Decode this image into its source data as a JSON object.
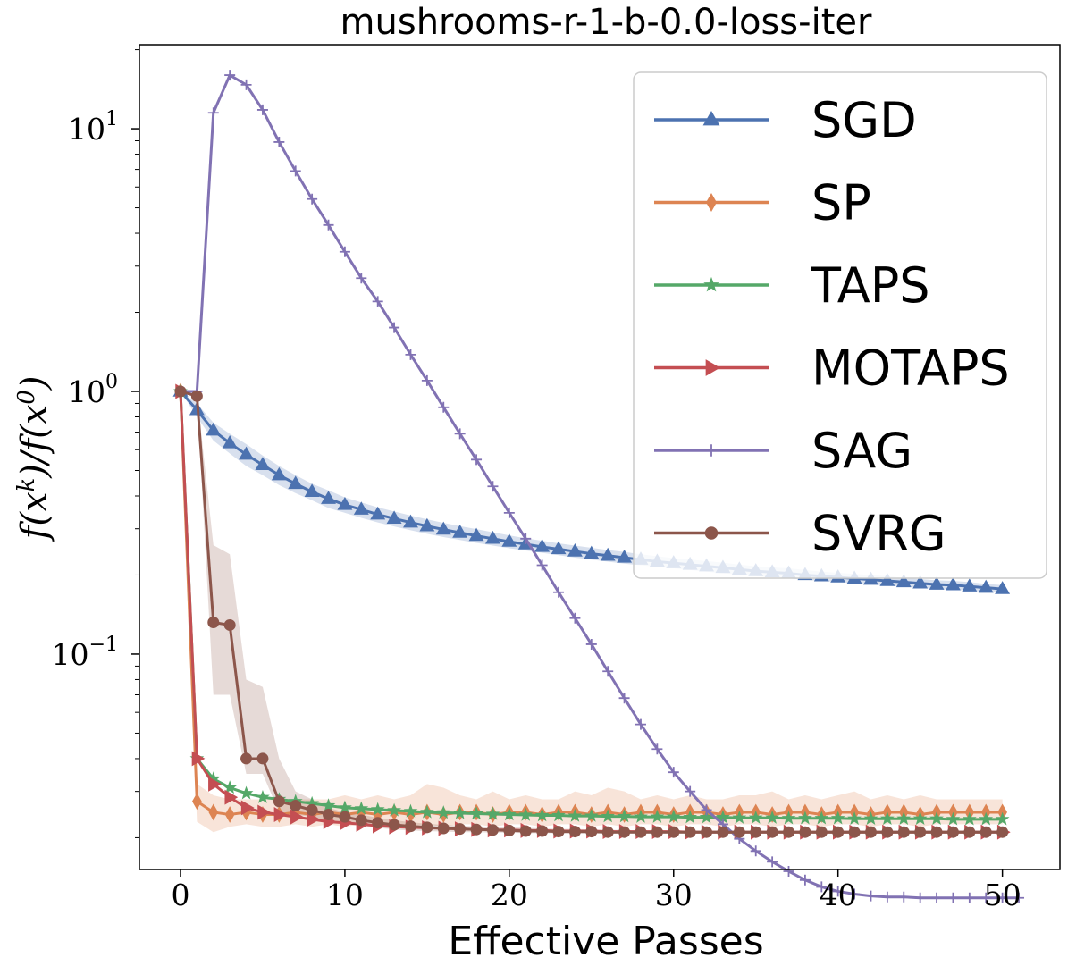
{
  "chart_data": {
    "type": "line",
    "title": "mushrooms-r-1-b-0.0-loss-iter",
    "xlabel": "Effective Passes",
    "ylabel": "f(x^k)/f(x^0)",
    "yscale": "log",
    "xlim": [
      -2.5,
      53.5
    ],
    "ylim_log10": [
      -1.82,
      1.32
    ],
    "xticks": [
      0,
      10,
      20,
      30,
      40,
      50
    ],
    "xtick_labels": [
      "0",
      "10",
      "20",
      "30",
      "40",
      "50"
    ],
    "yticks": [
      0.1,
      1,
      10
    ],
    "ytick_labels": [
      {
        "base": "10",
        "exp": "−1"
      },
      {
        "base": "10",
        "exp": "0"
      },
      {
        "base": "10",
        "exp": "1"
      }
    ],
    "legend_position": "top-right",
    "series": [
      {
        "name": "SGD",
        "color": "#4c72b0",
        "marker": "triangle",
        "x": [
          0,
          1,
          2,
          3,
          4,
          5,
          6,
          7,
          8,
          9,
          10,
          11,
          12,
          13,
          14,
          15,
          16,
          17,
          18,
          19,
          20,
          21,
          22,
          23,
          24,
          25,
          26,
          27,
          28,
          29,
          30,
          31,
          32,
          33,
          34,
          35,
          36,
          37,
          38,
          39,
          40,
          41,
          42,
          43,
          44,
          45,
          46,
          47,
          48,
          49,
          50
        ],
        "y": [
          1.0,
          0.85,
          0.71,
          0.635,
          0.575,
          0.525,
          0.48,
          0.445,
          0.415,
          0.39,
          0.37,
          0.355,
          0.34,
          0.328,
          0.317,
          0.307,
          0.298,
          0.29,
          0.282,
          0.275,
          0.268,
          0.262,
          0.256,
          0.251,
          0.246,
          0.241,
          0.237,
          0.233,
          0.229,
          0.225,
          0.222,
          0.219,
          0.216,
          0.213,
          0.21,
          0.207,
          0.205,
          0.203,
          0.2,
          0.198,
          0.196,
          0.194,
          0.192,
          0.19,
          0.188,
          0.186,
          0.184,
          0.183,
          0.181,
          0.179,
          0.177
        ],
        "band_lo": [
          1.0,
          0.8,
          0.65,
          0.58,
          0.52,
          0.48,
          0.44,
          0.41,
          0.385,
          0.36,
          0.345,
          0.33,
          0.317,
          0.306,
          0.296,
          0.287,
          0.279,
          0.272,
          0.265,
          0.259,
          0.253,
          0.248,
          0.243,
          0.238,
          0.233,
          0.229,
          0.225,
          0.221,
          0.218,
          0.215,
          0.212,
          0.209,
          0.206,
          0.203,
          0.201,
          0.198,
          0.196,
          0.194,
          0.192,
          0.19,
          0.188,
          0.186,
          0.184,
          0.182,
          0.181,
          0.179,
          0.177,
          0.176,
          0.174,
          0.173,
          0.171
        ],
        "band_hi": [
          1.0,
          0.9,
          0.76,
          0.69,
          0.63,
          0.57,
          0.52,
          0.48,
          0.445,
          0.42,
          0.395,
          0.378,
          0.362,
          0.349,
          0.337,
          0.326,
          0.316,
          0.307,
          0.299,
          0.291,
          0.283,
          0.276,
          0.27,
          0.264,
          0.259,
          0.254,
          0.249,
          0.245,
          0.24,
          0.236,
          0.232,
          0.229,
          0.226,
          0.223,
          0.219,
          0.216,
          0.214,
          0.212,
          0.209,
          0.206,
          0.204,
          0.202,
          0.2,
          0.198,
          0.195,
          0.193,
          0.191,
          0.19,
          0.188,
          0.185,
          0.183
        ]
      },
      {
        "name": "SP",
        "color": "#dd8452",
        "marker": "diamond",
        "x": [
          0,
          1,
          2,
          3,
          4,
          5,
          6,
          7,
          8,
          9,
          10,
          11,
          12,
          13,
          14,
          15,
          16,
          17,
          18,
          19,
          20,
          21,
          22,
          23,
          24,
          25,
          26,
          27,
          28,
          29,
          30,
          31,
          32,
          33,
          34,
          35,
          36,
          37,
          38,
          39,
          40,
          41,
          42,
          43,
          44,
          45,
          46,
          47,
          48,
          49,
          50
        ],
        "y": [
          1.0,
          0.0275,
          0.025,
          0.0245,
          0.025,
          0.0245,
          0.0245,
          0.025,
          0.0245,
          0.025,
          0.0245,
          0.025,
          0.0245,
          0.025,
          0.0245,
          0.025,
          0.0245,
          0.025,
          0.025,
          0.0245,
          0.025,
          0.025,
          0.0245,
          0.025,
          0.025,
          0.0245,
          0.025,
          0.0245,
          0.025,
          0.025,
          0.0245,
          0.025,
          0.025,
          0.0245,
          0.025,
          0.025,
          0.0245,
          0.025,
          0.025,
          0.0245,
          0.025,
          0.025,
          0.0245,
          0.025,
          0.025,
          0.0245,
          0.025,
          0.025,
          0.025,
          0.025,
          0.025
        ],
        "band_lo": [
          1.0,
          0.023,
          0.021,
          0.022,
          0.0225,
          0.022,
          0.022,
          0.0225,
          0.022,
          0.0225,
          0.022,
          0.0225,
          0.022,
          0.0225,
          0.022,
          0.0225,
          0.022,
          0.0225,
          0.0225,
          0.022,
          0.0225,
          0.0225,
          0.022,
          0.0225,
          0.0225,
          0.022,
          0.0225,
          0.022,
          0.0225,
          0.0225,
          0.022,
          0.0225,
          0.0225,
          0.022,
          0.0225,
          0.0225,
          0.022,
          0.0225,
          0.0225,
          0.022,
          0.0225,
          0.0225,
          0.022,
          0.0225,
          0.0225,
          0.022,
          0.0225,
          0.0225,
          0.0225,
          0.0225,
          0.0225
        ],
        "band_hi": [
          1.0,
          0.032,
          0.029,
          0.028,
          0.028,
          0.028,
          0.028,
          0.028,
          0.028,
          0.028,
          0.029,
          0.028,
          0.029,
          0.028,
          0.029,
          0.032,
          0.031,
          0.029,
          0.028,
          0.03,
          0.028,
          0.029,
          0.028,
          0.028,
          0.03,
          0.029,
          0.031,
          0.03,
          0.028,
          0.029,
          0.028,
          0.029,
          0.028,
          0.028,
          0.029,
          0.029,
          0.03,
          0.028,
          0.029,
          0.028,
          0.029,
          0.03,
          0.028,
          0.029,
          0.028,
          0.029,
          0.028,
          0.028,
          0.028,
          0.028,
          0.028
        ]
      },
      {
        "name": "TAPS",
        "color": "#55a868",
        "marker": "star",
        "x": [
          0,
          1,
          2,
          3,
          4,
          5,
          6,
          7,
          8,
          9,
          10,
          11,
          12,
          13,
          14,
          15,
          16,
          17,
          18,
          19,
          20,
          21,
          22,
          23,
          24,
          25,
          26,
          27,
          28,
          29,
          30,
          31,
          32,
          33,
          34,
          35,
          36,
          37,
          38,
          39,
          40,
          41,
          42,
          43,
          44,
          45,
          46,
          47,
          48,
          49,
          50
        ],
        "y": [
          1.0,
          0.04,
          0.0335,
          0.031,
          0.0295,
          0.0285,
          0.028,
          0.0275,
          0.027,
          0.0265,
          0.026,
          0.0258,
          0.0256,
          0.0254,
          0.0252,
          0.025,
          0.0249,
          0.0248,
          0.0247,
          0.0246,
          0.0245,
          0.0244,
          0.0243,
          0.0243,
          0.0242,
          0.0242,
          0.0241,
          0.0241,
          0.024,
          0.024,
          0.024,
          0.0239,
          0.0239,
          0.0239,
          0.0238,
          0.0238,
          0.0238,
          0.0237,
          0.0237,
          0.0237,
          0.0237,
          0.0236,
          0.0236,
          0.0236,
          0.0236,
          0.0236,
          0.0236,
          0.0235,
          0.0235,
          0.0235,
          0.0235
        ]
      },
      {
        "name": "MOTAPS",
        "color": "#c44e52",
        "marker": "triangle-right",
        "x": [
          0,
          1,
          2,
          3,
          4,
          5,
          6,
          7,
          8,
          9,
          10,
          11,
          12,
          13,
          14,
          15,
          16,
          17,
          18,
          19,
          20,
          21,
          22,
          23,
          24,
          25,
          26,
          27,
          28,
          29,
          30,
          31,
          32,
          33,
          34,
          35,
          36,
          37,
          38,
          39,
          40,
          41,
          42,
          43,
          44,
          45,
          46,
          47,
          48,
          49,
          50
        ],
        "y": [
          1.0,
          0.04,
          0.032,
          0.0285,
          0.026,
          0.025,
          0.0245,
          0.024,
          0.0235,
          0.023,
          0.0228,
          0.0225,
          0.0222,
          0.022,
          0.0219,
          0.0218,
          0.0217,
          0.0216,
          0.0215,
          0.0214,
          0.0214,
          0.0213,
          0.0213,
          0.0212,
          0.0212,
          0.0212,
          0.0211,
          0.0211,
          0.0211,
          0.0211,
          0.0211,
          0.021,
          0.021,
          0.021,
          0.021,
          0.021,
          0.021,
          0.021,
          0.021,
          0.021,
          0.021,
          0.021,
          0.021,
          0.021,
          0.021,
          0.021,
          0.021,
          0.021,
          0.021,
          0.021,
          0.021
        ]
      },
      {
        "name": "SAG",
        "color": "#8172b3",
        "marker": "plus",
        "x": [
          0,
          1,
          2,
          3,
          4,
          5,
          6,
          7,
          8,
          9,
          10,
          11,
          12,
          13,
          14,
          15,
          16,
          17,
          18,
          19,
          20,
          21,
          22,
          23,
          24,
          25,
          26,
          27,
          28,
          29,
          30,
          31,
          32,
          33,
          34,
          35,
          36,
          37,
          38,
          39,
          40,
          41,
          42,
          43,
          44,
          45,
          46,
          47,
          48,
          49,
          50,
          51
        ],
        "y": [
          1.0,
          1.0,
          11.5,
          16.0,
          14.7,
          11.8,
          8.9,
          6.9,
          5.4,
          4.3,
          3.4,
          2.7,
          2.2,
          1.75,
          1.38,
          1.1,
          0.87,
          0.69,
          0.55,
          0.435,
          0.345,
          0.275,
          0.218,
          0.172,
          0.137,
          0.109,
          0.086,
          0.068,
          0.054,
          0.0435,
          0.0355,
          0.03,
          0.0255,
          0.0225,
          0.0198,
          0.0178,
          0.0162,
          0.0149,
          0.0138,
          0.013,
          0.0125,
          0.0122,
          0.012,
          0.0119,
          0.0119,
          0.0118,
          0.0118,
          0.0118,
          0.0118,
          0.0118,
          0.0118,
          0.0118
        ]
      },
      {
        "name": "SVRG",
        "color": "#8c564b",
        "marker": "circle",
        "x": [
          0,
          1,
          2,
          3,
          4,
          5,
          6,
          7,
          8,
          9,
          10,
          11,
          12,
          13,
          14,
          15,
          16,
          17,
          18,
          19,
          20,
          21,
          22,
          23,
          24,
          25,
          26,
          27,
          28,
          29,
          30,
          31,
          32,
          33,
          34,
          35,
          36,
          37,
          38,
          39,
          40,
          41,
          42,
          43,
          44,
          45,
          46,
          47,
          48,
          49,
          50
        ],
        "y": [
          1.0,
          0.96,
          0.132,
          0.129,
          0.04,
          0.04,
          0.0275,
          0.0265,
          0.0255,
          0.0245,
          0.024,
          0.0233,
          0.0228,
          0.0224,
          0.0221,
          0.0219,
          0.0217,
          0.0216,
          0.0215,
          0.0214,
          0.0213,
          0.0212,
          0.0212,
          0.0211,
          0.0211,
          0.0211,
          0.021,
          0.021,
          0.021,
          0.021,
          0.021,
          0.021,
          0.021,
          0.021,
          0.021,
          0.021,
          0.021,
          0.021,
          0.021,
          0.021,
          0.021,
          0.021,
          0.021,
          0.021,
          0.021,
          0.021,
          0.021,
          0.021,
          0.021,
          0.021,
          0.021
        ],
        "band_lo": [
          1.0,
          0.96,
          0.07,
          0.07,
          0.035,
          0.035,
          0.025,
          0.0245,
          0.024,
          0.023,
          0.0228,
          0.0222,
          0.0218,
          0.0215,
          0.0213,
          0.0212,
          0.0211,
          0.021,
          0.021,
          0.0209,
          0.0209,
          0.0208,
          0.0208,
          0.0208,
          0.0207,
          0.0207,
          0.0207,
          0.0207,
          0.0207,
          0.0207,
          0.0207,
          0.0207,
          0.0207,
          0.0207,
          0.0207,
          0.0207,
          0.0207,
          0.0207,
          0.0207,
          0.0207,
          0.0207,
          0.0207,
          0.0207,
          0.0207,
          0.0207,
          0.0207,
          0.0207,
          0.0207,
          0.0207,
          0.0207,
          0.0207
        ],
        "band_hi": [
          1.0,
          0.98,
          0.26,
          0.24,
          0.08,
          0.075,
          0.04,
          0.03,
          0.028,
          0.026,
          0.025,
          0.0245,
          0.0238,
          0.0233,
          0.0229,
          0.0226,
          0.0224,
          0.0222,
          0.0221,
          0.022,
          0.0219,
          0.0218,
          0.0217,
          0.0216,
          0.0216,
          0.0215,
          0.0214,
          0.0214,
          0.0213,
          0.0213,
          0.0213,
          0.0213,
          0.0213,
          0.0213,
          0.0213,
          0.0213,
          0.0213,
          0.0213,
          0.0213,
          0.0213,
          0.0213,
          0.0213,
          0.0213,
          0.0213,
          0.0213,
          0.0213,
          0.0213,
          0.0213,
          0.0213,
          0.0213,
          0.0213
        ]
      }
    ]
  }
}
